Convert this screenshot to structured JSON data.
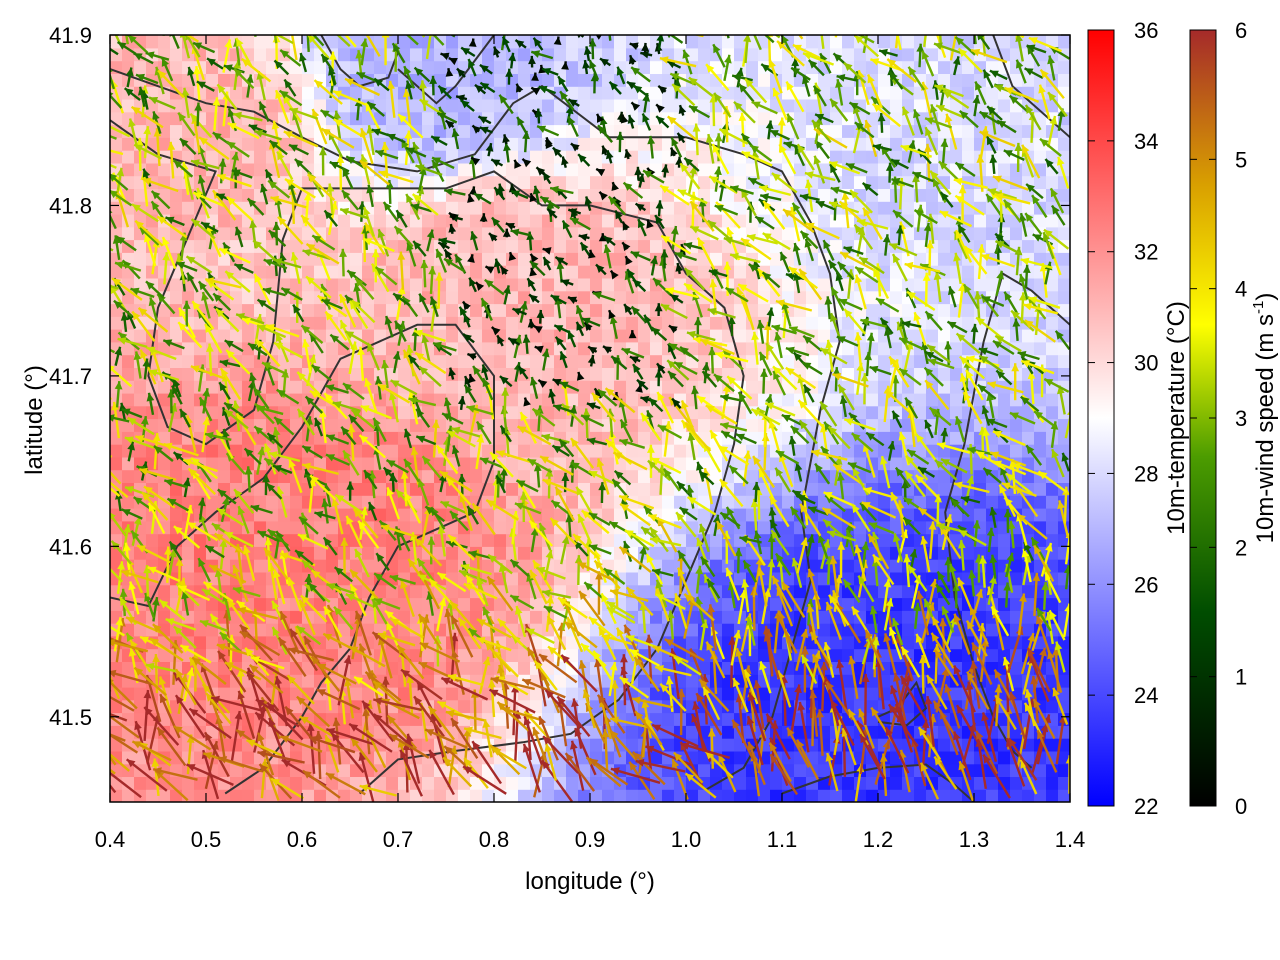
{
  "chart_data": {
    "type": "heatmap",
    "title": "",
    "xlabel": "longitude (°)",
    "ylabel": "latitude (°)",
    "xlim": [
      0.4,
      1.4
    ],
    "ylim": [
      41.45,
      41.9
    ],
    "x_ticks": [
      "0.4",
      "0.5",
      "0.6",
      "0.7",
      "0.8",
      "0.9",
      "1.0",
      "1.1",
      "1.2",
      "1.3",
      "1.4"
    ],
    "y_ticks": [
      "41.5",
      "41.6",
      "41.7",
      "41.8",
      "41.9"
    ],
    "temperature_colorbar": {
      "label": "10m-temperature (°C)",
      "range": [
        22,
        36
      ],
      "ticks": [
        "22",
        "24",
        "26",
        "28",
        "30",
        "32",
        "34",
        "36"
      ],
      "colors": [
        "#0000ff",
        "#ffffff",
        "#ff0000"
      ]
    },
    "wind_colorbar": {
      "label_main": "10m-wind speed (m s",
      "label_sup": "-1",
      "label_end": ")",
      "range": [
        0,
        6
      ],
      "ticks": [
        "0",
        "1",
        "2",
        "3",
        "4",
        "5",
        "6"
      ],
      "colors": [
        "#000000",
        "#006400",
        "#7fbf00",
        "#ffff00",
        "#d9a400",
        "#a0522d",
        "#a52a2a"
      ]
    },
    "temperature_field": {
      "description_points": [
        {
          "lon": 0.5,
          "lat": 41.85,
          "temp": 31
        },
        {
          "lon": 0.6,
          "lat": 41.6,
          "temp": 32.5
        },
        {
          "lon": 0.8,
          "lat": 41.75,
          "temp": 31
        },
        {
          "lon": 1.2,
          "lat": 41.5,
          "temp": 23.5
        },
        {
          "lon": 1.35,
          "lat": 41.85,
          "temp": 28
        },
        {
          "lon": 0.72,
          "lat": 41.88,
          "temp": 27
        }
      ]
    },
    "contours": [
      [
        [
          0.4,
          41.88
        ],
        [
          0.5,
          41.86
        ],
        [
          0.55,
          41.855
        ],
        [
          0.6,
          41.84
        ],
        [
          0.65,
          41.826
        ],
        [
          0.72,
          41.82
        ],
        [
          0.78,
          41.83
        ],
        [
          0.82,
          41.86
        ],
        [
          0.85,
          41.87
        ],
        [
          0.92,
          41.84
        ],
        [
          1.0,
          41.84
        ],
        [
          1.06,
          41.83
        ],
        [
          1.1,
          41.82
        ],
        [
          1.13,
          41.79
        ],
        [
          1.15,
          41.76
        ],
        [
          1.16,
          41.72
        ],
        [
          1.14,
          41.68
        ],
        [
          1.12,
          41.62
        ],
        [
          1.13,
          41.58
        ],
        [
          1.11,
          41.54
        ],
        [
          1.09,
          41.5
        ],
        [
          1.06,
          41.47
        ],
        [
          1.02,
          41.457
        ]
      ],
      [
        [
          0.4,
          41.85
        ],
        [
          0.45,
          41.83
        ],
        [
          0.51,
          41.82
        ],
        [
          0.48,
          41.78
        ],
        [
          0.45,
          41.74
        ],
        [
          0.44,
          41.7
        ],
        [
          0.46,
          41.67
        ],
        [
          0.5,
          41.66
        ],
        [
          0.55,
          41.68
        ],
        [
          0.57,
          41.72
        ],
        [
          0.58,
          41.78
        ],
        [
          0.6,
          41.81
        ],
        [
          0.68,
          41.81
        ],
        [
          0.75,
          41.81
        ],
        [
          0.8,
          41.82
        ],
        [
          0.85,
          41.8
        ],
        [
          0.9,
          41.8
        ],
        [
          0.97,
          41.79
        ],
        [
          1.0,
          41.76
        ],
        [
          1.04,
          41.74
        ],
        [
          1.06,
          41.7
        ],
        [
          1.05,
          41.66
        ],
        [
          1.03,
          41.62
        ],
        [
          1.0,
          41.58
        ],
        [
          0.97,
          41.54
        ],
        [
          0.93,
          41.51
        ],
        [
          0.88,
          41.49
        ],
        [
          0.83,
          41.485
        ],
        [
          0.76,
          41.48
        ],
        [
          0.7,
          41.475
        ],
        [
          0.66,
          41.455
        ]
      ],
      [
        [
          0.4,
          41.57
        ],
        [
          0.44,
          41.565
        ],
        [
          0.47,
          41.6
        ],
        [
          0.51,
          41.62
        ],
        [
          0.56,
          41.64
        ],
        [
          0.6,
          41.67
        ],
        [
          0.64,
          41.71
        ],
        [
          0.68,
          41.72
        ],
        [
          0.72,
          41.73
        ],
        [
          0.76,
          41.73
        ],
        [
          0.8,
          41.7
        ],
        [
          0.8,
          41.65
        ],
        [
          0.78,
          41.62
        ],
        [
          0.74,
          41.61
        ],
        [
          0.7,
          41.6
        ],
        [
          0.67,
          41.57
        ],
        [
          0.65,
          41.54
        ],
        [
          0.62,
          41.52
        ],
        [
          0.6,
          41.5
        ],
        [
          0.56,
          41.47
        ],
        [
          0.52,
          41.455
        ]
      ],
      [
        [
          0.7,
          41.88
        ],
        [
          0.72,
          41.87
        ],
        [
          0.74,
          41.86
        ],
        [
          0.76,
          41.87
        ],
        [
          0.78,
          41.885
        ],
        [
          0.8,
          41.9
        ]
      ],
      [
        [
          0.62,
          41.9
        ],
        [
          0.64,
          41.88
        ],
        [
          0.66,
          41.87
        ],
        [
          0.69,
          41.875
        ],
        [
          0.7,
          41.89
        ]
      ],
      [
        [
          1.2,
          41.5
        ],
        [
          1.22,
          41.505
        ],
        [
          1.24,
          41.52
        ],
        [
          1.25,
          41.505
        ],
        [
          1.23,
          41.495
        ],
        [
          1.2,
          41.497
        ]
      ],
      [
        [
          1.1,
          41.455
        ],
        [
          1.15,
          41.465
        ],
        [
          1.2,
          41.47
        ],
        [
          1.25,
          41.472
        ],
        [
          1.28,
          41.46
        ],
        [
          1.3,
          41.45
        ]
      ],
      [
        [
          1.32,
          41.9
        ],
        [
          1.34,
          41.87
        ],
        [
          1.36,
          41.86
        ],
        [
          1.38,
          41.85
        ],
        [
          1.4,
          41.84
        ]
      ],
      [
        [
          1.4,
          41.73
        ],
        [
          1.36,
          41.75
        ],
        [
          1.33,
          41.76
        ],
        [
          1.31,
          41.72
        ],
        [
          1.29,
          41.66
        ],
        [
          1.27,
          41.62
        ],
        [
          1.28,
          41.57
        ],
        [
          1.3,
          41.53
        ],
        [
          1.32,
          41.5
        ],
        [
          1.34,
          41.48
        ],
        [
          1.36,
          41.47
        ]
      ]
    ]
  }
}
